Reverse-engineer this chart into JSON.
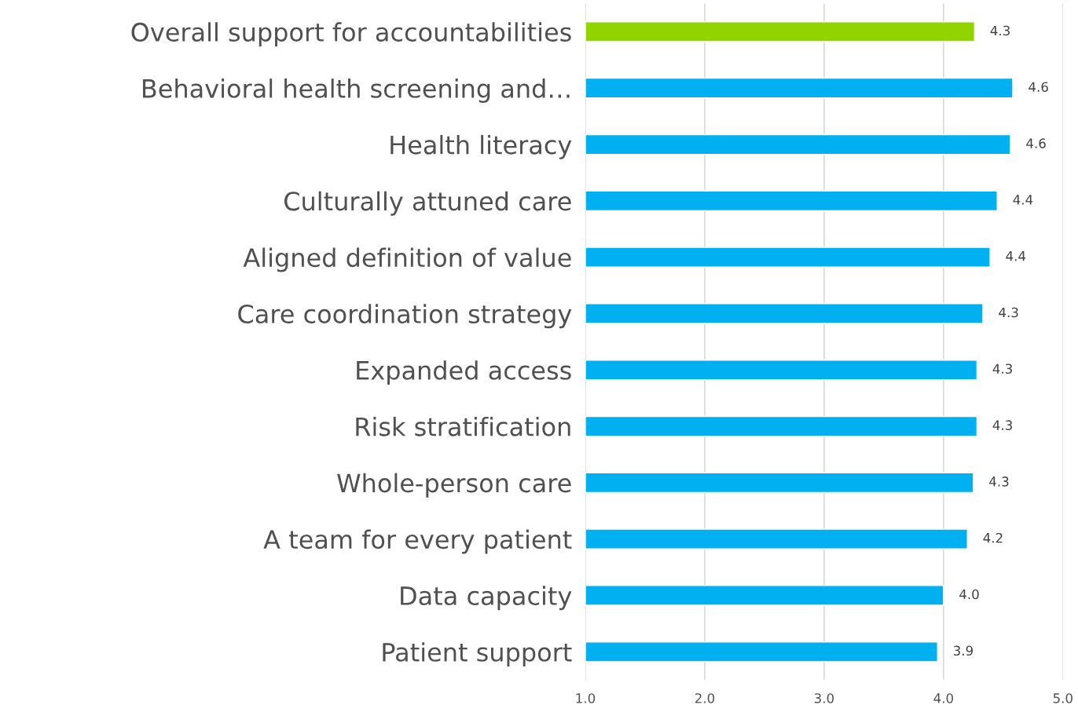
{
  "chart_data": {
    "type": "bar",
    "orientation": "horizontal",
    "categories": [
      "Overall support for accountabilities",
      "Behavioral health screening and…",
      "Health literacy",
      "Culturally attuned care",
      "Aligned definition of value",
      "Care coordination strategy",
      "Expanded access",
      "Risk stratification",
      "Whole-person care",
      "A team for every patient",
      "Data capacity",
      "Patient support"
    ],
    "values": [
      4.26,
      4.58,
      4.56,
      4.45,
      4.39,
      4.33,
      4.28,
      4.28,
      4.25,
      4.2,
      4.0,
      3.95
    ],
    "value_labels": [
      "4.3",
      "4.6",
      "4.6",
      "4.4",
      "4.4",
      "4.3",
      "4.3",
      "4.3",
      "4.3",
      "4.2",
      "4.0",
      "3.9"
    ],
    "colors": [
      "#92d400",
      "#00b0f0",
      "#00b0f0",
      "#00b0f0",
      "#00b0f0",
      "#00b0f0",
      "#00b0f0",
      "#00b0f0",
      "#00b0f0",
      "#00b0f0",
      "#00b0f0",
      "#00b0f0"
    ],
    "xlim": [
      1,
      5
    ],
    "xticks": [
      {
        "value": 1,
        "label": "1.0"
      },
      {
        "value": 2,
        "label": "2.0"
      },
      {
        "value": 3,
        "label": "3.0"
      },
      {
        "value": 4,
        "label": "4.0"
      },
      {
        "value": 5,
        "label": "5.0"
      }
    ],
    "grid": "x",
    "legend": false
  }
}
